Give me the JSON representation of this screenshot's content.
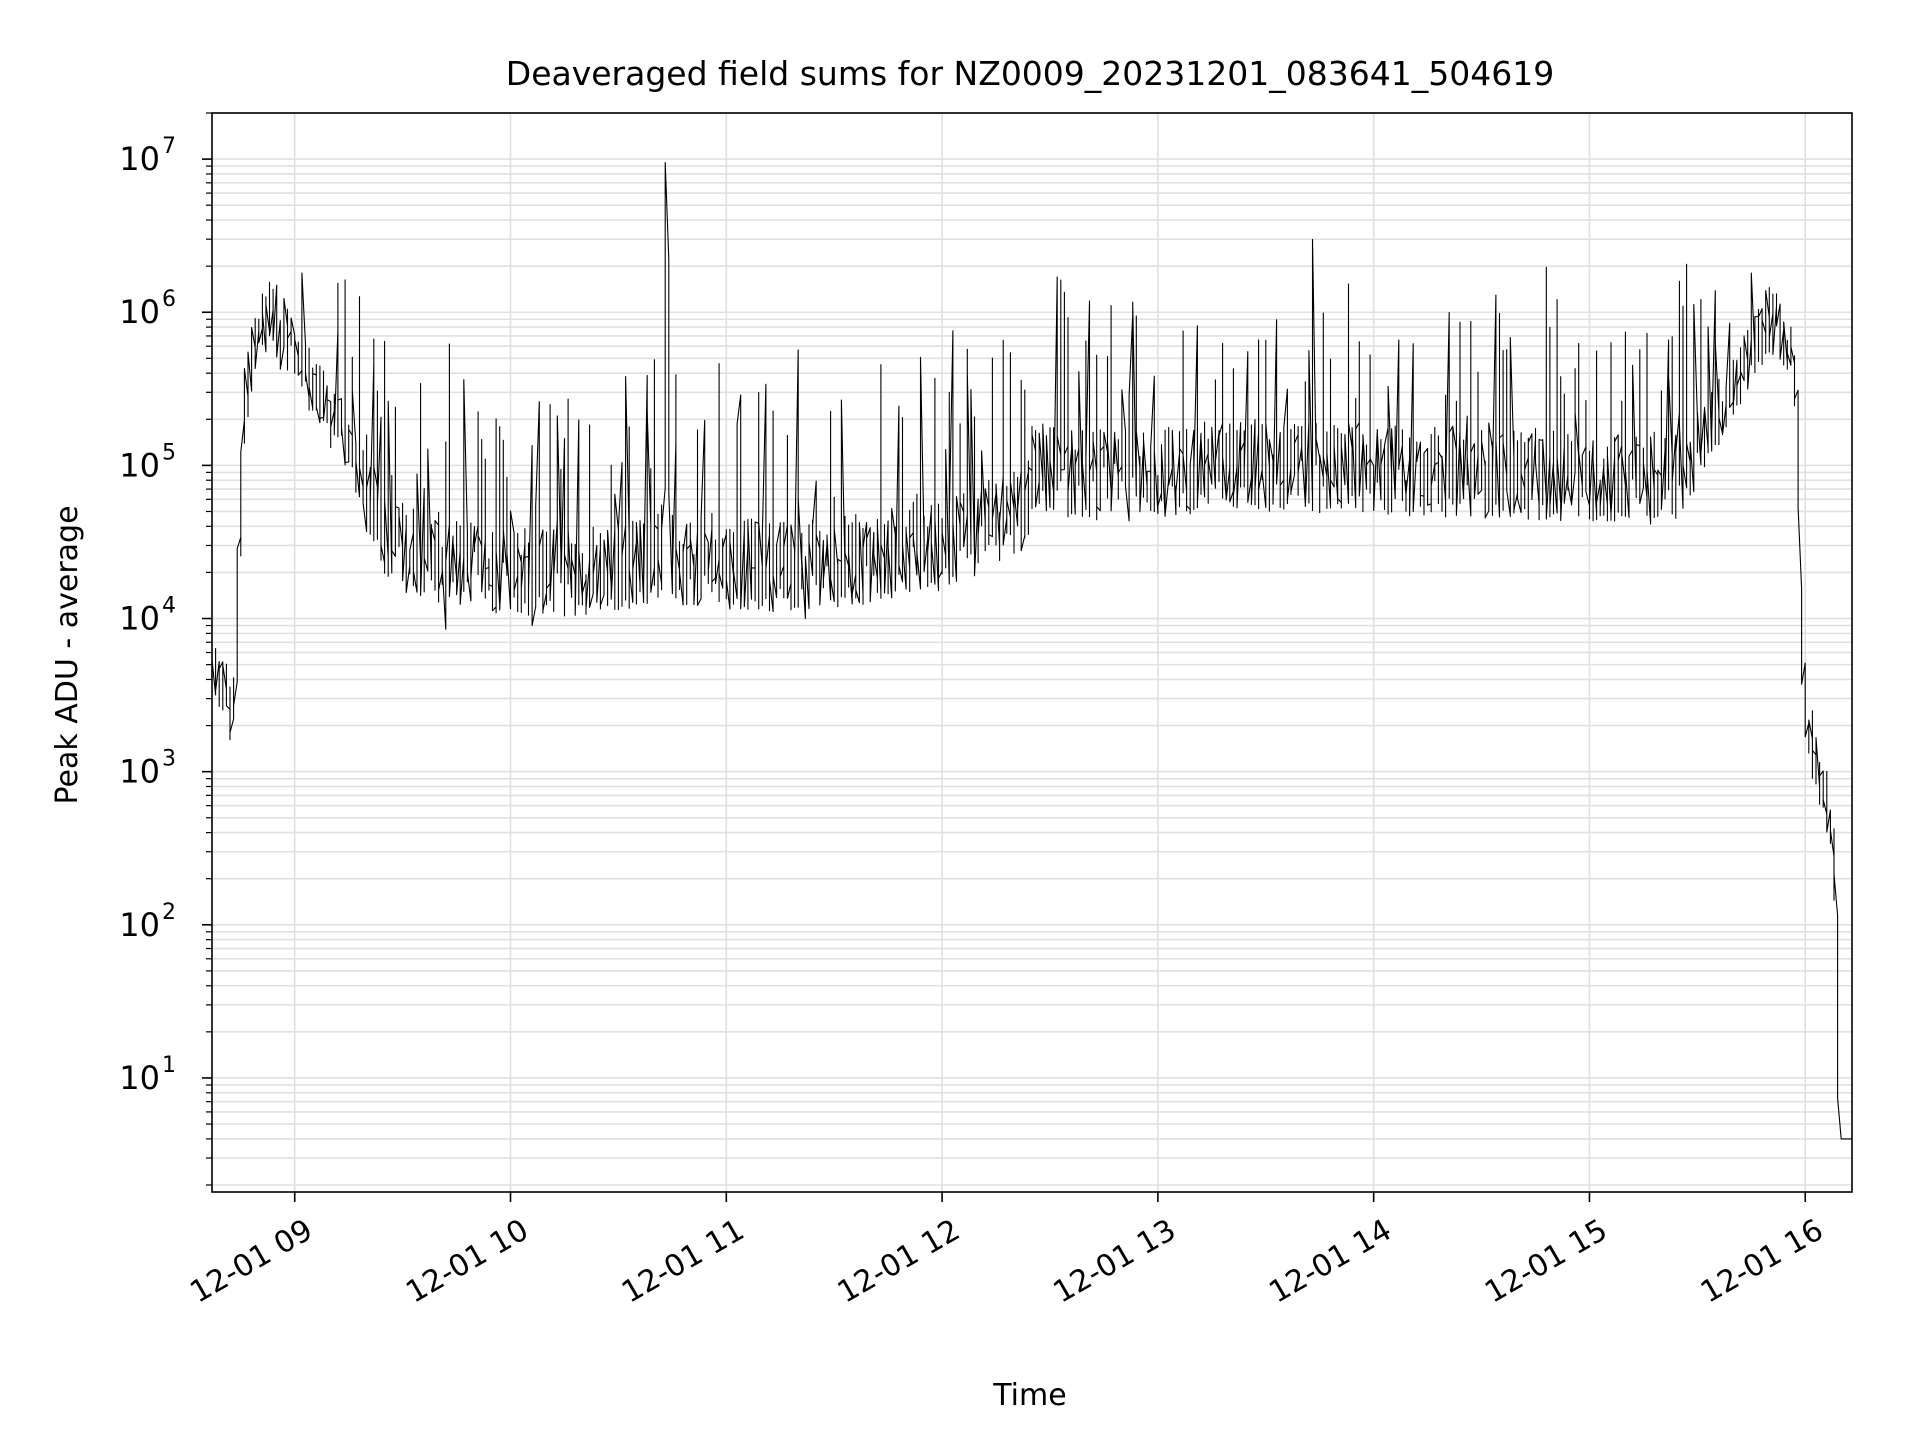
{
  "chart_data": {
    "type": "line",
    "title": "Deaveraged field sums for NZ0009_20231201_083641_504619",
    "xlabel": "Time",
    "ylabel": "Peak ADU - average",
    "xlim": [
      "2023-12-01 08:37",
      "2023-12-01 16:13"
    ],
    "ylim": [
      1.8,
      20000000
    ],
    "yscale": "log",
    "grid": true,
    "legend": "none",
    "line_color": "#000000",
    "grid_color": "#e0e0e0",
    "xticks": [
      {
        "value": "2023-12-01 09:00",
        "label": "12-01 09"
      },
      {
        "value": "2023-12-01 10:00",
        "label": "12-01 10"
      },
      {
        "value": "2023-12-01 11:00",
        "label": "12-01 11"
      },
      {
        "value": "2023-12-01 12:00",
        "label": "12-01 12"
      },
      {
        "value": "2023-12-01 13:00",
        "label": "12-01 13"
      },
      {
        "value": "2023-12-01 14:00",
        "label": "12-01 14"
      },
      {
        "value": "2023-12-01 15:00",
        "label": "12-01 15"
      },
      {
        "value": "2023-12-01 16:00",
        "label": "12-01 16"
      }
    ],
    "yticks": [
      {
        "value": 10,
        "base": "10",
        "exp": "1"
      },
      {
        "value": 100,
        "base": "10",
        "exp": "2"
      },
      {
        "value": 1000,
        "base": "10",
        "exp": "3"
      },
      {
        "value": 10000,
        "base": "10",
        "exp": "4"
      },
      {
        "value": 100000,
        "base": "10",
        "exp": "5"
      },
      {
        "value": 1000000,
        "base": "10",
        "exp": "6"
      },
      {
        "value": 10000000,
        "base": "10",
        "exp": "7"
      }
    ],
    "series": [
      {
        "x": [
          "2023-12-01 08:37",
          "2023-12-01 08:40",
          "2023-12-01 08:41",
          "2023-12-01 08:43",
          "2023-12-01 08:44",
          "2023-12-01 08:46",
          "2023-12-01 08:48",
          "2023-12-01 08:50",
          "2023-12-01 08:52",
          "2023-12-01 08:55",
          "2023-12-01 08:56",
          "2023-12-01 08:57",
          "2023-12-01 08:58",
          "2023-12-01 08:59",
          "2023-12-01 09:01",
          "2023-12-01 09:03",
          "2023-12-01 09:06",
          "2023-12-01 09:10",
          "2023-12-01 09:15",
          "2023-12-01 09:20",
          "2023-12-01 09:25",
          "2023-12-01 09:30",
          "2023-12-01 09:35",
          "2023-12-01 09:40",
          "2023-12-01 09:45",
          "2023-12-01 09:50",
          "2023-12-01 10:00",
          "2023-12-01 10:10",
          "2023-12-01 10:20",
          "2023-12-01 10:30",
          "2023-12-01 10:40",
          "2023-12-01 10:43",
          "2023-12-01 10:44",
          "2023-12-01 10:45",
          "2023-12-01 10:50",
          "2023-12-01 11:00",
          "2023-12-01 11:15",
          "2023-12-01 11:30",
          "2023-12-01 11:45",
          "2023-12-01 12:00",
          "2023-12-01 12:15",
          "2023-12-01 12:24",
          "2023-12-01 12:25",
          "2023-12-01 12:35",
          "2023-12-01 12:50",
          "2023-12-01 13:00",
          "2023-12-01 13:15",
          "2023-12-01 13:30",
          "2023-12-01 14:00",
          "2023-12-01 14:30",
          "2023-12-01 15:00",
          "2023-12-01 15:15",
          "2023-12-01 15:25",
          "2023-12-01 15:35",
          "2023-12-01 15:40",
          "2023-12-01 15:45",
          "2023-12-01 15:50",
          "2023-12-01 15:53",
          "2023-12-01 15:56",
          "2023-12-01 15:58",
          "2023-12-01 16:00",
          "2023-12-01 16:03",
          "2023-12-01 16:06",
          "2023-12-01 16:08",
          "2023-12-01 16:09",
          "2023-12-01 16:10",
          "2023-12-01 16:13"
        ],
        "y": [
          5000,
          3500,
          4000,
          2000,
          4000,
          150000,
          500000,
          700000,
          900000,
          1000000,
          600000,
          700000,
          750000,
          650000,
          550000,
          450000,
          320000,
          220000,
          140000,
          70000,
          40000,
          30000,
          28000,
          25000,
          23000,
          22000,
          21000,
          20000,
          21000,
          22000,
          25000,
          28000,
          9500000,
          25000,
          24000,
          23000,
          22000,
          23000,
          26000,
          30000,
          42000,
          50000,
          100000,
          90000,
          85000,
          90000,
          100000,
          100000,
          95000,
          90000,
          85000,
          80000,
          90000,
          200000,
          300000,
          500000,
          900000,
          800000,
          600000,
          300000,
          4000,
          1200,
          700,
          400,
          200,
          4,
          4
        ]
      }
    ],
    "extremes": [
      {
        "x": "2023-12-01 10:44",
        "y": 9500000
      },
      {
        "x": "2023-12-01 15:46",
        "y": 1800000
      },
      {
        "x": "2023-12-01 09:03",
        "y": 1800000
      },
      {
        "x": "2023-12-01 12:32",
        "y": 1700000
      },
      {
        "x": "2023-12-01 09:42",
        "y": 8500
      },
      {
        "x": "2023-12-01 10:07",
        "y": 9000
      },
      {
        "x": "2023-12-01 11:22",
        "y": 10000
      },
      {
        "x": "2023-12-01 08:43",
        "y": 1800
      }
    ]
  }
}
